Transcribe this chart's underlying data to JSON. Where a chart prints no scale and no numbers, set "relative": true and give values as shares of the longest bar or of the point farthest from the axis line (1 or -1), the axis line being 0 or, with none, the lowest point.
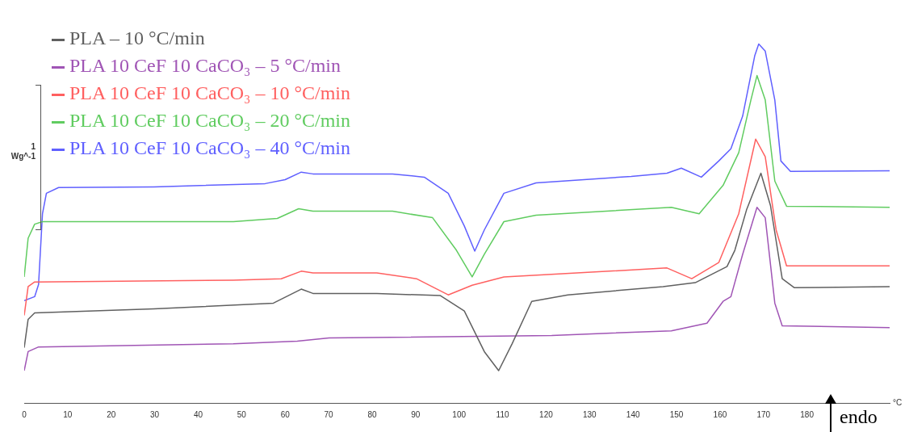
{
  "chart_data": {
    "type": "line",
    "xlabel": "°C",
    "relative": true,
    "legend": "top left",
    "marker": "none",
    "line_style": "solid",
    "xlim": [
      0,
      199
    ],
    "xticks": [
      0,
      10,
      20,
      30,
      40,
      50,
      60,
      70,
      80,
      90,
      100,
      110,
      120,
      130,
      140,
      150,
      160,
      170,
      180
    ],
    "annotations": [
      "1",
      "Wg^-1",
      "endo"
    ],
    "series": [
      {
        "name": "PLA – 10 °C/min",
        "color": "#606060",
        "x": [
          0,
          0.9,
          2.4,
          29.8,
          57.3,
          63.7,
          66.4,
          81.1,
          95.7,
          101.2,
          105.8,
          109.1,
          112.2,
          116.7,
          125,
          146.9,
          154.3,
          161.6,
          163.4,
          166.1,
          169.4,
          171.6,
          174.3,
          177.1,
          199
        ],
        "values": [
          0.154,
          0.233,
          0.251,
          0.262,
          0.278,
          0.317,
          0.305,
          0.305,
          0.299,
          0.256,
          0.143,
          0.09,
          0.165,
          0.283,
          0.301,
          0.324,
          0.335,
          0.38,
          0.425,
          0.538,
          0.64,
          0.55,
          0.346,
          0.321,
          0.324
        ]
      },
      {
        "name": "PLA 10 CeF 10 CaCO₃ – 5 °C/min",
        "color": "#a055b5",
        "x": [
          0,
          0.9,
          3.3,
          48.1,
          62.8,
          70.1,
          121.3,
          148.8,
          157,
          160.7,
          162.5,
          165.2,
          168.5,
          170.4,
          172.6,
          174.3,
          199
        ],
        "values": [
          0.09,
          0.143,
          0.156,
          0.165,
          0.172,
          0.181,
          0.188,
          0.201,
          0.222,
          0.283,
          0.296,
          0.414,
          0.545,
          0.516,
          0.278,
          0.215,
          0.21
        ]
      },
      {
        "name": "PLA 10 CeF 10 CaCO₃ – 10 °C/min",
        "color": "#ff6060",
        "x": [
          0,
          0.9,
          2.4,
          48.1,
          59.1,
          63.7,
          66.4,
          81.1,
          90.2,
          97.5,
          103,
          110.3,
          147.8,
          153.5,
          159.7,
          164.3,
          168.2,
          170.4,
          172.9,
          175.3,
          199
        ],
        "values": [
          0.244,
          0.324,
          0.337,
          0.342,
          0.346,
          0.367,
          0.362,
          0.362,
          0.346,
          0.301,
          0.328,
          0.351,
          0.376,
          0.346,
          0.391,
          0.527,
          0.735,
          0.686,
          0.482,
          0.382,
          0.382
        ]
      },
      {
        "name": "PLA 10 CeF 10 CaCO₃ – 20 °C/min",
        "color": "#60cc60",
        "x": [
          0,
          0.9,
          2.4,
          4.2,
          48.1,
          58.2,
          63.1,
          66.4,
          84.7,
          93.9,
          99.4,
          103,
          105.8,
          110.3,
          117.7,
          148.8,
          155.2,
          160.7,
          164.3,
          167.1,
          168.5,
          170.4,
          172.6,
          175.3,
          199
        ],
        "values": [
          0.351,
          0.459,
          0.498,
          0.505,
          0.505,
          0.514,
          0.541,
          0.534,
          0.534,
          0.516,
          0.425,
          0.351,
          0.414,
          0.505,
          0.523,
          0.545,
          0.527,
          0.606,
          0.697,
          0.844,
          0.912,
          0.844,
          0.618,
          0.548,
          0.545
        ]
      },
      {
        "name": "PLA 10 CeF 10 CaCO₃ – 40 °C/min",
        "color": "#6060ff",
        "x": [
          0,
          2.4,
          3.3,
          4.2,
          5.1,
          7.9,
          29.8,
          55.4,
          60,
          63.7,
          66.4,
          84.7,
          92,
          97.5,
          101.2,
          103.6,
          105.8,
          110.3,
          117.7,
          139.6,
          147.8,
          151.1,
          155.7,
          159.7,
          162.5,
          165.2,
          168,
          168.9,
          170.4,
          172.6,
          174,
          176.2,
          199
        ],
        "values": [
          0.285,
          0.296,
          0.33,
          0.527,
          0.584,
          0.6,
          0.602,
          0.611,
          0.622,
          0.643,
          0.638,
          0.638,
          0.629,
          0.584,
          0.493,
          0.423,
          0.482,
          0.584,
          0.613,
          0.631,
          0.64,
          0.654,
          0.629,
          0.674,
          0.708,
          0.799,
          0.968,
          1,
          0.98,
          0.844,
          0.674,
          0.645,
          0.647
        ]
      }
    ]
  }
}
